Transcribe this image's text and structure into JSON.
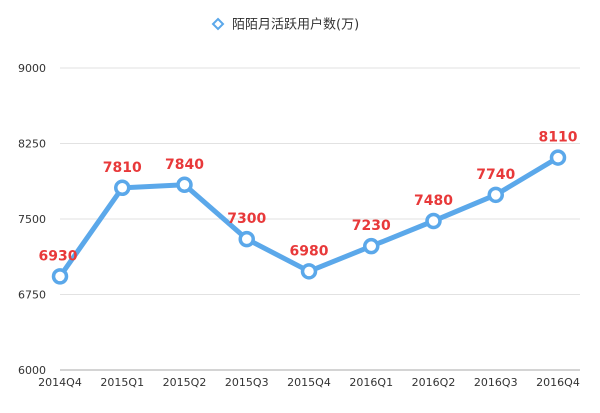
{
  "colors": {
    "series": "#5BA8EA",
    "data_label": "#E8393A",
    "grid": "#E2E2E2",
    "axis": "#AAAAAA"
  },
  "chart_data": {
    "type": "line",
    "title": "",
    "xlabel": "",
    "ylabel": "",
    "categories": [
      "2014Q4",
      "2015Q1",
      "2015Q2",
      "2015Q3",
      "2015Q4",
      "2016Q1",
      "2016Q2",
      "2016Q3",
      "2016Q4"
    ],
    "series": [
      {
        "name": "陌陌月活跃用户数(万)",
        "values": [
          6930,
          7810,
          7840,
          7300,
          6980,
          7230,
          7480,
          7740,
          8110
        ]
      }
    ],
    "ylim": [
      6000,
      9000
    ],
    "yticks": [
      6000,
      6750,
      7500,
      8250,
      9000
    ],
    "data_labels": [
      "6930",
      "7810",
      "7840",
      "7300",
      "6980",
      "7230",
      "7480",
      "7740",
      "8110"
    ],
    "legend_position": "top-center",
    "grid": true,
    "marker": "hollow-circle"
  }
}
